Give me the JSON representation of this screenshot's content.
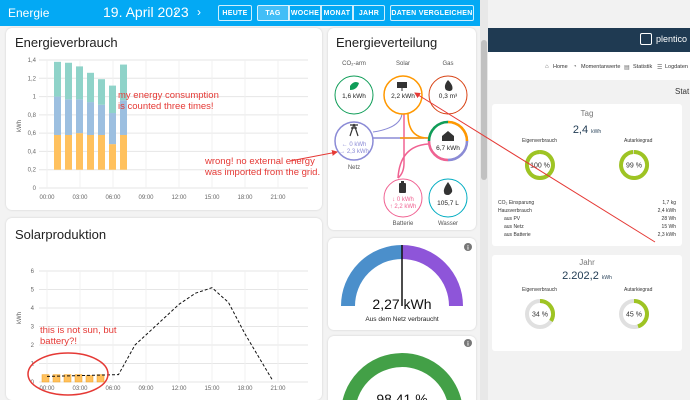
{
  "topbar": {
    "app_title": "Energie",
    "date": "19. April 2023",
    "prev_icon": "chevron-left",
    "next_icon": "chevron-right",
    "today": "HEUTE",
    "periods": [
      "TAG",
      "WOCHE",
      "MONAT",
      "JAHR"
    ],
    "active_period": "TAG",
    "compare": "DATEN VERGLEICHEN"
  },
  "consumption": {
    "title": "Energieverbrauch",
    "ylabel": "kWh",
    "yticks": [
      "1,4",
      "1,2",
      "1",
      "0,8",
      "0,6",
      "0,4",
      "0,2",
      "0"
    ],
    "xticks": [
      "00:00",
      "03:00",
      "06:00",
      "09:00",
      "12:00",
      "15:00",
      "18:00",
      "21:00"
    ]
  },
  "solar": {
    "title": "Solarproduktion",
    "ylabel": "kWh",
    "yticks": [
      "6",
      "5",
      "4",
      "3",
      "2",
      "1",
      "0"
    ],
    "xticks": [
      "00:00",
      "03:00",
      "06:00",
      "09:00",
      "12:00",
      "15:00",
      "18:00",
      "21:00"
    ]
  },
  "distribution": {
    "title": "Energieverteilung",
    "co2_label": "CO₂-arm",
    "co2_value": "1,6 kWh",
    "solar_label": "Solar",
    "solar_value": "2,2 kWh",
    "gas_label": "Gas",
    "gas_value": "0,3 m³",
    "grid_label": "Netz",
    "grid_in": "← 0 kWh",
    "grid_out": "→ 2,3 kWh",
    "home_value": "6,7 kWh",
    "battery_label": "Batterie",
    "battery_in": "↓ 0 kWh",
    "battery_out": "↑ 2,2 kWh",
    "water_label": "Wasser",
    "water_value": "105,7 L"
  },
  "gauges": {
    "grid_value": "2,27 kWh",
    "grid_label": "Aus dem Netz verbraucht",
    "grid_fraction": 0.5,
    "second_value": "98,41 %",
    "second_fraction": 0.9841,
    "info_icon": "info-icon"
  },
  "annotations": {
    "consumption": "my energy consumption is counted three times!",
    "grid": "wrong!  no external energy was imported from the grid.",
    "solar": "this is not sun, but battery?!"
  },
  "right_panel": {
    "brand": "plentico",
    "nav": [
      "Home",
      "Momentanwerte",
      "Statistik",
      "Logdaten"
    ],
    "side_label": "Stat",
    "day_title": "Tag",
    "day_value": "2,4",
    "day_unit": "kWh",
    "eigen_label": "Eigenverbrauch",
    "autark_label": "Autarkiegrad",
    "day_eigen": "100 %",
    "day_eigen_fraction": 1.0,
    "day_autark": "99 %",
    "day_autark_fraction": 0.99,
    "rows": [
      {
        "label": "CO₂ Einsparung",
        "value": "1,7 kg"
      },
      {
        "label": "Hausverbrauch",
        "value": "2,4 kWh"
      },
      {
        "label": "aus PV",
        "value": "28 Wh"
      },
      {
        "label": "aus Netz",
        "value": "15 Wh"
      },
      {
        "label": "aus Batterie",
        "value": "2,3 kWh"
      }
    ],
    "year_title": "Jahr",
    "year_value": "2.202,2",
    "year_unit": "kWh",
    "year_eigen": "34 %",
    "year_eigen_fraction": 0.34,
    "year_autark": "45 %",
    "year_autark_fraction": 0.45
  },
  "colors": {
    "header": "#03a9f4",
    "consumption_teal": "#8fd3c9",
    "consumption_blue": "#9cbfe0",
    "consumption_orange": "#ffc15e",
    "solar_bar": "#ffc15e",
    "grid_circle": "#8b8bd6",
    "solar_circle": "#ff9800",
    "gas_circle": "#d84315",
    "co2_circle": "#0f9d58",
    "battery_circle": "#f06292",
    "water_circle": "#00acc1",
    "gauge_blue": "#4b8fcb",
    "gauge_purple": "#8e55d9",
    "gauge_green": "#43a047",
    "annotation": "#e53935",
    "ring_green": "#9ec423"
  }
}
